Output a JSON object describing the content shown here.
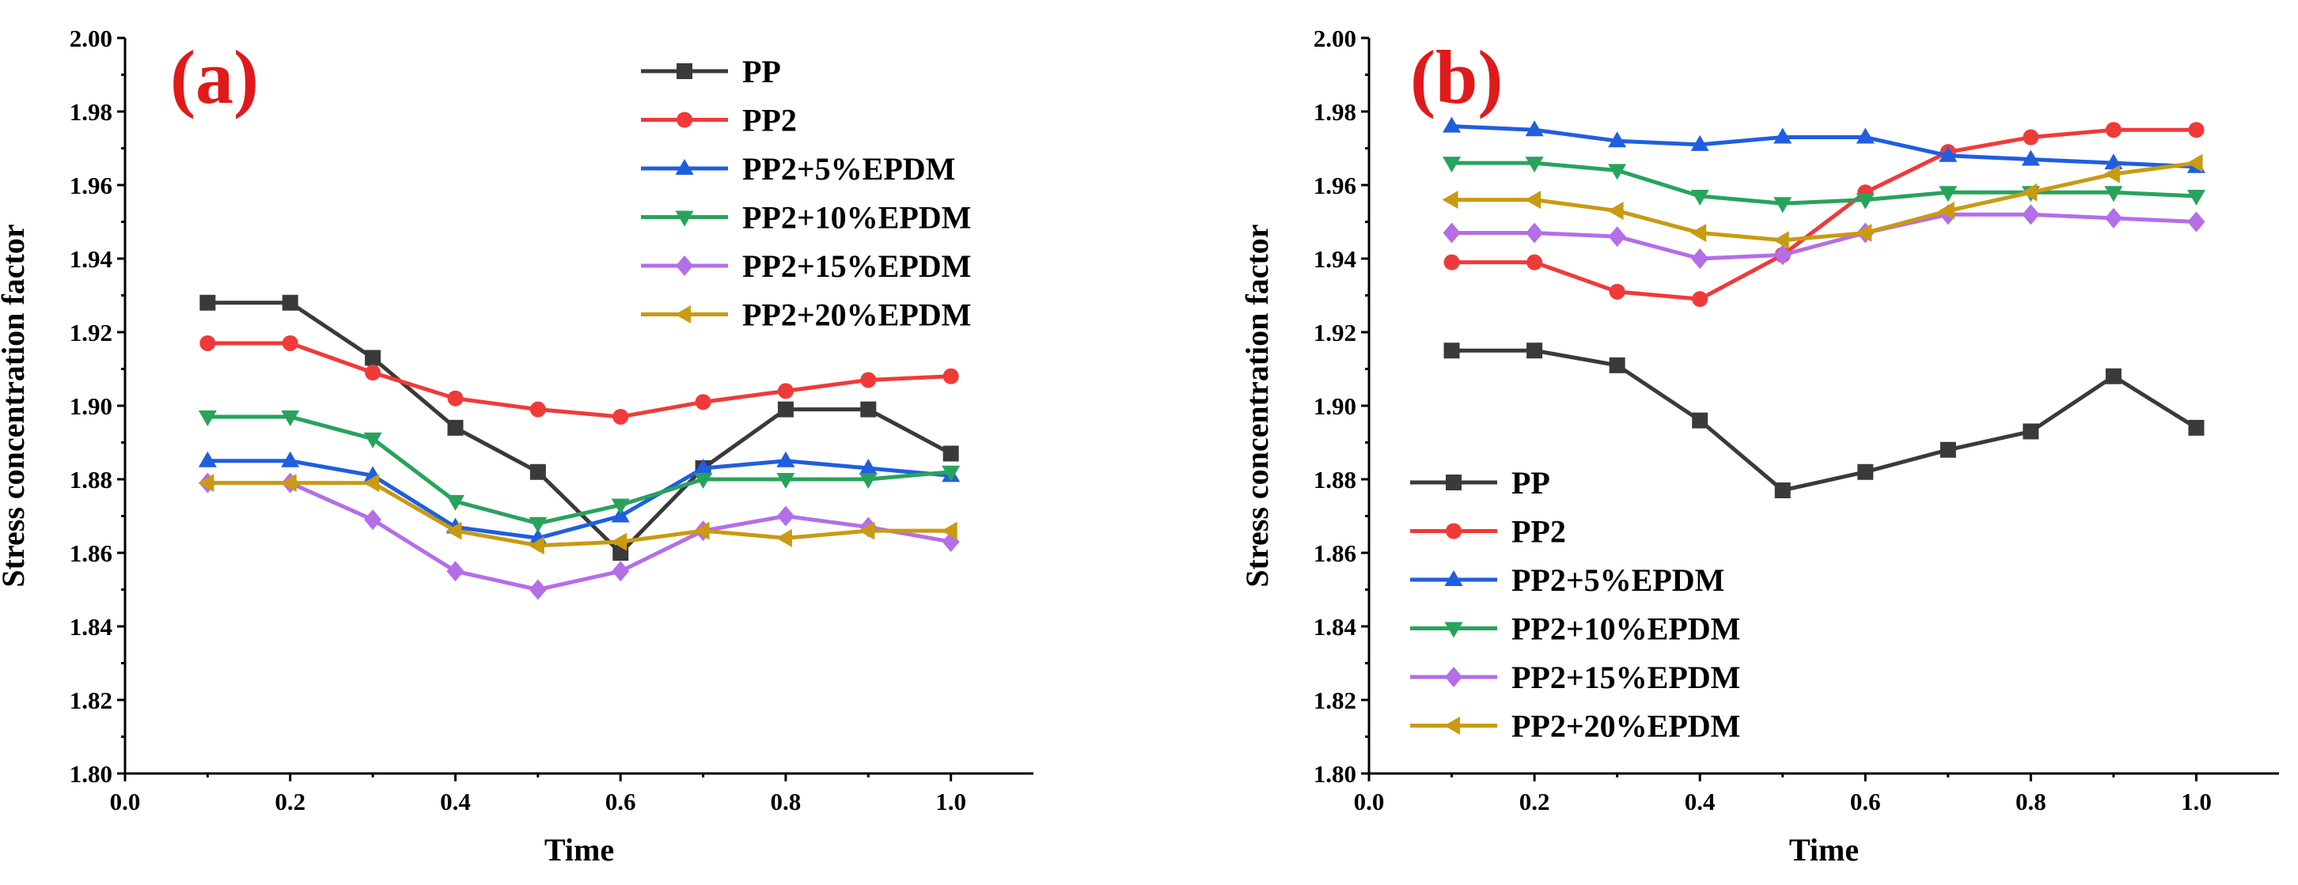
{
  "colors": {
    "axis": "#000000",
    "panel_label": "#e01a1a"
  },
  "chart_data": [
    {
      "type": "line",
      "panel_label": "(a)",
      "xlabel": "Time",
      "ylabel": "Stress concentration factor",
      "xlim": [
        0.0,
        1.1
      ],
      "ylim": [
        1.8,
        2.0
      ],
      "xticks": [
        "0.0",
        "0.2",
        "0.4",
        "0.6",
        "0.8",
        "1.0"
      ],
      "yticks": [
        "1.80",
        "1.82",
        "1.84",
        "1.86",
        "1.88",
        "1.90",
        "1.92",
        "1.94",
        "1.96",
        "1.98",
        "2.00"
      ],
      "legend_position": "top-right",
      "x": [
        0.1,
        0.2,
        0.3,
        0.4,
        0.5,
        0.6,
        0.7,
        0.8,
        0.9,
        1.0
      ],
      "series": [
        {
          "name": "PP",
          "color": "#3a3a3a",
          "marker": "square",
          "values": [
            1.928,
            1.928,
            1.913,
            1.894,
            1.882,
            1.86,
            1.883,
            1.899,
            1.899,
            1.887
          ]
        },
        {
          "name": "PP2",
          "color": "#f03a3a",
          "marker": "circle",
          "values": [
            1.917,
            1.917,
            1.909,
            1.902,
            1.899,
            1.897,
            1.901,
            1.904,
            1.907,
            1.908
          ]
        },
        {
          "name": "PP2+5%EPDM",
          "color": "#1f5ee0",
          "marker": "triangle-up",
          "values": [
            1.885,
            1.885,
            1.881,
            1.867,
            1.864,
            1.87,
            1.883,
            1.885,
            1.883,
            1.881
          ]
        },
        {
          "name": "PP2+10%EPDM",
          "color": "#27a35c",
          "marker": "triangle-down",
          "values": [
            1.897,
            1.897,
            1.891,
            1.874,
            1.868,
            1.873,
            1.88,
            1.88,
            1.88,
            1.882
          ]
        },
        {
          "name": "PP2+15%EPDM",
          "color": "#b46ee8",
          "marker": "diamond",
          "values": [
            1.879,
            1.879,
            1.869,
            1.855,
            1.85,
            1.855,
            1.866,
            1.87,
            1.867,
            1.863
          ]
        },
        {
          "name": "PP2+20%EPDM",
          "color": "#c99a12",
          "marker": "triangle-left",
          "values": [
            1.879,
            1.879,
            1.879,
            1.866,
            1.862,
            1.863,
            1.866,
            1.864,
            1.866,
            1.866
          ]
        }
      ]
    },
    {
      "type": "line",
      "panel_label": "(b)",
      "xlabel": "Time",
      "ylabel": "Stress concentration factor",
      "xlim": [
        0.0,
        1.1
      ],
      "ylim": [
        1.8,
        2.0
      ],
      "xticks": [
        "0.0",
        "0.2",
        "0.4",
        "0.6",
        "0.8",
        "1.0"
      ],
      "yticks": [
        "1.80",
        "1.82",
        "1.84",
        "1.86",
        "1.88",
        "1.90",
        "1.92",
        "1.94",
        "1.96",
        "1.98",
        "2.00"
      ],
      "legend_position": "bottom-left",
      "x": [
        0.1,
        0.2,
        0.3,
        0.4,
        0.5,
        0.6,
        0.7,
        0.8,
        0.9,
        1.0
      ],
      "series": [
        {
          "name": "PP",
          "color": "#3a3a3a",
          "marker": "square",
          "values": [
            1.915,
            1.915,
            1.911,
            1.896,
            1.877,
            1.882,
            1.888,
            1.893,
            1.908,
            1.894
          ]
        },
        {
          "name": "PP2",
          "color": "#f03a3a",
          "marker": "circle",
          "values": [
            1.939,
            1.939,
            1.931,
            1.929,
            1.941,
            1.958,
            1.969,
            1.973,
            1.975,
            1.975
          ]
        },
        {
          "name": "PP2+5%EPDM",
          "color": "#1f5ee0",
          "marker": "triangle-up",
          "values": [
            1.976,
            1.975,
            1.972,
            1.971,
            1.973,
            1.973,
            1.968,
            1.967,
            1.966,
            1.965
          ]
        },
        {
          "name": "PP2+10%EPDM",
          "color": "#27a35c",
          "marker": "triangle-down",
          "values": [
            1.966,
            1.966,
            1.964,
            1.957,
            1.955,
            1.956,
            1.958,
            1.958,
            1.958,
            1.957
          ]
        },
        {
          "name": "PP2+15%EPDM",
          "color": "#b46ee8",
          "marker": "diamond",
          "values": [
            1.947,
            1.947,
            1.946,
            1.94,
            1.941,
            1.947,
            1.952,
            1.952,
            1.951,
            1.95
          ]
        },
        {
          "name": "PP2+20%EPDM",
          "color": "#c99a12",
          "marker": "triangle-left",
          "values": [
            1.956,
            1.956,
            1.953,
            1.947,
            1.945,
            1.947,
            1.953,
            1.958,
            1.963,
            1.966
          ]
        }
      ]
    }
  ]
}
